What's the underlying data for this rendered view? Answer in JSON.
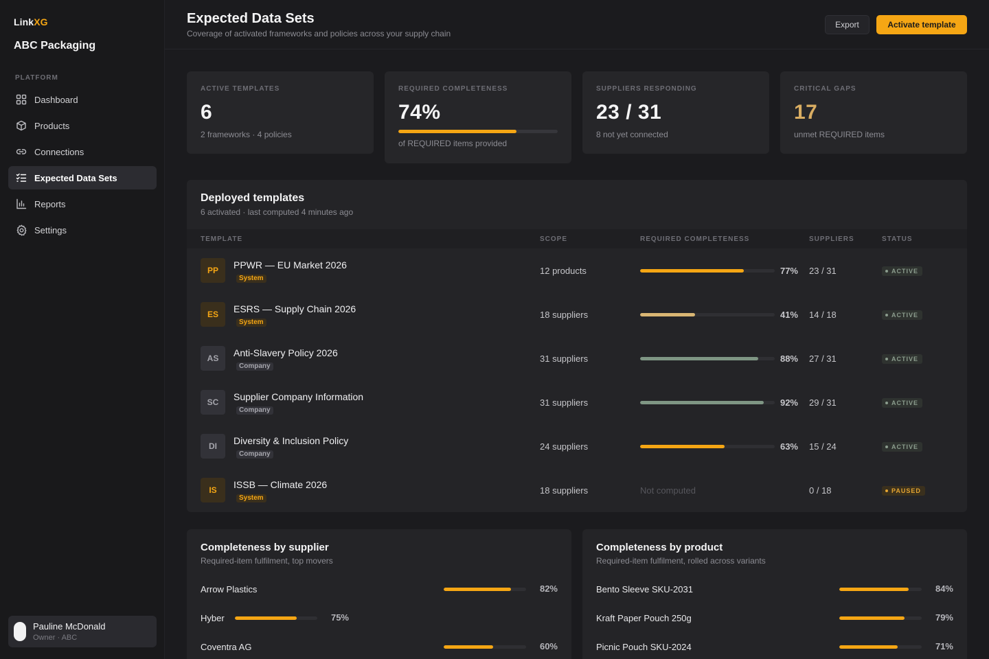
{
  "sidebar": {
    "brand_prefix": "Link",
    "brand_suffix": "XG",
    "org": "ABC Packaging",
    "section": "PLATFORM",
    "items": [
      {
        "label": "Dashboard",
        "icon": "grid-icon"
      },
      {
        "label": "Products",
        "icon": "box-icon"
      },
      {
        "label": "Connections",
        "icon": "link-icon"
      },
      {
        "label": "Expected Data Sets",
        "icon": "checklist-icon",
        "active": true
      },
      {
        "label": "Reports",
        "icon": "bar-chart-icon"
      },
      {
        "label": "Settings",
        "icon": "gear-icon"
      }
    ],
    "user": {
      "name": "Pauline McDonald",
      "role": "Owner · ABC"
    }
  },
  "header": {
    "title": "Expected Data Sets",
    "subtitle": "Coverage of activated frameworks and policies across your supply chain",
    "export_label": "Export",
    "activate_label": "Activate template"
  },
  "kpis": [
    {
      "label": "ACTIVE TEMPLATES",
      "value": "6",
      "sub": "2 frameworks · 4 policies"
    },
    {
      "label": "REQUIRED COMPLETENESS",
      "value": "74%",
      "sub": "of REQUIRED items provided",
      "progress": 0.74
    },
    {
      "label": "SUPPLIERS RESPONDING",
      "value": "23 / 31",
      "sub": "8 not yet connected"
    },
    {
      "label": "CRITICAL GAPS",
      "value": "17",
      "sub": "unmet REQUIRED items"
    }
  ],
  "templates": {
    "title": "Deployed templates",
    "subtitle": "6 activated · last computed 4 minutes ago",
    "columns": [
      "TEMPLATE",
      "SCOPE",
      "REQUIRED COMPLETENESS",
      "SUPPLIERS",
      "STATUS"
    ],
    "rows": [
      {
        "abbr": "PP",
        "name": "PPWR — EU Market 2026",
        "kind": "System",
        "scope": "12 products",
        "completeness": 0.77,
        "pct": "77%",
        "suppliers": "23 / 31",
        "status": "ACTIVE",
        "bar_color": "#f5a614"
      },
      {
        "abbr": "ES",
        "name": "ESRS — Supply Chain 2026",
        "kind": "System",
        "scope": "18 suppliers",
        "completeness": 0.41,
        "pct": "41%",
        "suppliers": "14 / 18",
        "status": "ACTIVE",
        "bar_color": "#d9b673"
      },
      {
        "abbr": "AS",
        "name": "Anti-Slavery Policy 2026",
        "kind": "Company",
        "scope": "31 suppliers",
        "completeness": 0.88,
        "pct": "88%",
        "suppliers": "27 / 31",
        "status": "ACTIVE",
        "bar_color": "#7f9684"
      },
      {
        "abbr": "SC",
        "name": "Supplier Company Information",
        "kind": "Company",
        "scope": "31 suppliers",
        "completeness": 0.92,
        "pct": "92%",
        "suppliers": "29 / 31",
        "status": "ACTIVE",
        "bar_color": "#7f9684"
      },
      {
        "abbr": "DI",
        "name": "Diversity & Inclusion Policy",
        "kind": "Company",
        "scope": "24 suppliers",
        "completeness": 0.63,
        "pct": "63%",
        "suppliers": "15 / 24",
        "status": "ACTIVE",
        "bar_color": "#f5a614"
      },
      {
        "abbr": "IS",
        "name": "ISSB — Climate 2026",
        "kind": "System",
        "scope": "18 suppliers",
        "completeness": null,
        "pct": "Not computed",
        "suppliers": "0 / 18",
        "status": "PAUSED",
        "bar_color": "#f5a614"
      }
    ]
  },
  "by_supplier": {
    "title": "Completeness by supplier",
    "subtitle": "Required-item fulfilment, top movers",
    "rows": [
      {
        "name": "Arrow Plastics",
        "value": 0.82,
        "pct": "82%"
      },
      {
        "name": "Hyber",
        "value": 0.75,
        "pct": "75%"
      },
      {
        "name": "Coventra AG",
        "value": 0.6,
        "pct": "60%"
      }
    ]
  },
  "by_product": {
    "title": "Completeness by product",
    "subtitle": "Required-item fulfilment, rolled across variants",
    "rows": [
      {
        "name": "Bento Sleeve SKU-2031",
        "value": 0.84,
        "pct": "84%"
      },
      {
        "name": "Kraft Paper Pouch 250g",
        "value": 0.79,
        "pct": "79%"
      },
      {
        "name": "Picnic Pouch SKU-2024",
        "value": 0.71,
        "pct": "71%"
      }
    ]
  }
}
